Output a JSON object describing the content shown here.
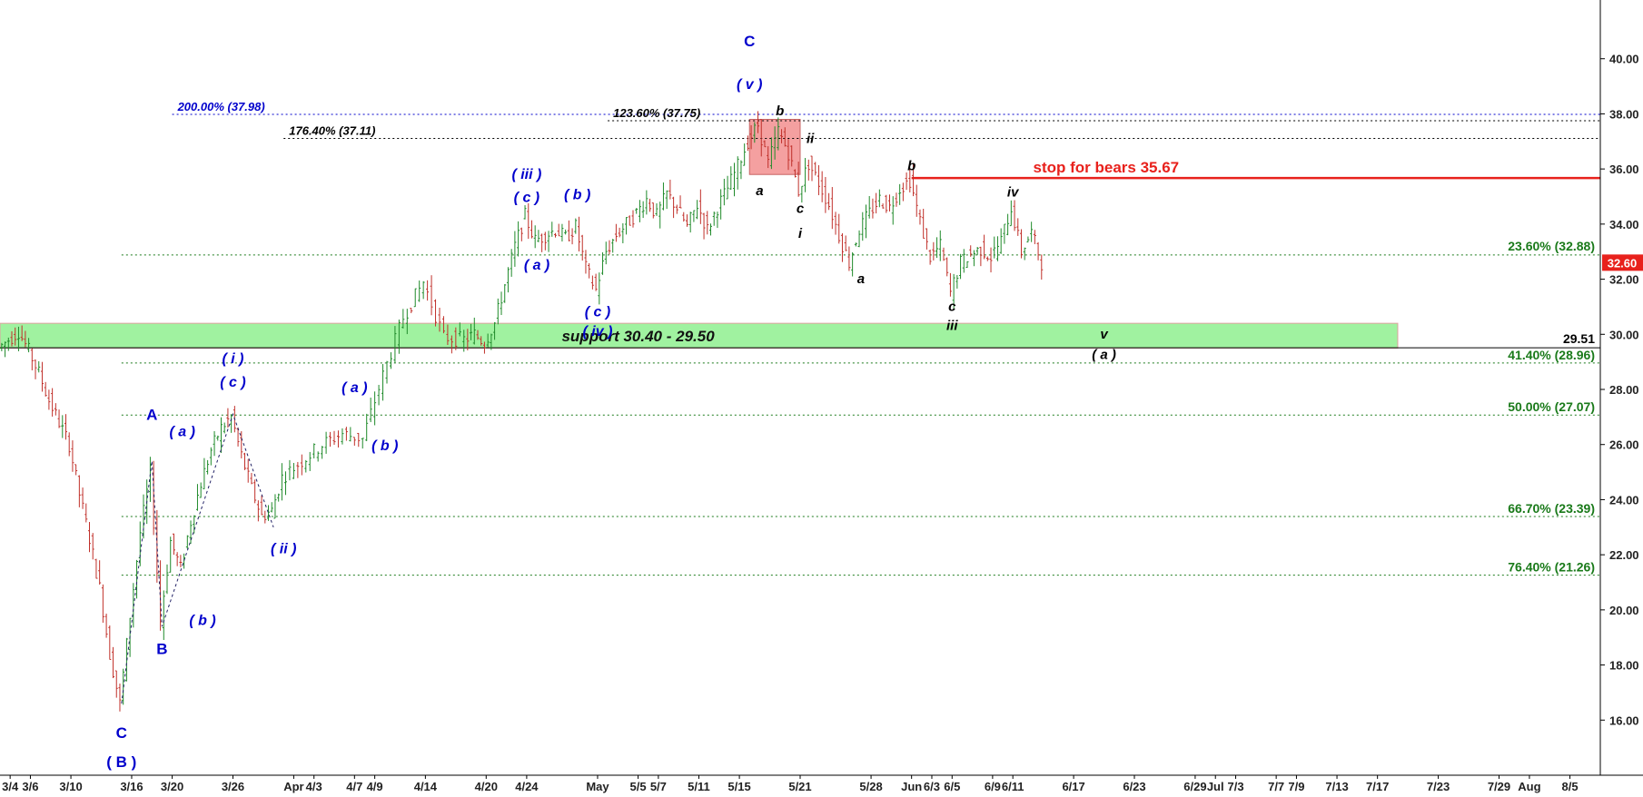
{
  "chart_data": {
    "type": "candlestick",
    "y_axis": {
      "ylim": [
        14.0,
        42.0
      ],
      "ticks": [
        16.0,
        18.0,
        20.0,
        22.0,
        24.0,
        26.0,
        28.0,
        30.0,
        32.0,
        34.0,
        36.0,
        38.0,
        40.0
      ],
      "tick_labels": [
        "16.00",
        "18.00",
        "20.00",
        "22.00",
        "24.00",
        "26.00",
        "28.00",
        "30.00",
        "32.00",
        "34.00",
        "36.00",
        "38.00",
        "40.00"
      ],
      "position": "right"
    },
    "x_axis": {
      "date_range": [
        "2020-03-03",
        "2020-08-08"
      ],
      "ticks": [
        {
          "date": "2020-03-04",
          "label": "3/4"
        },
        {
          "date": "2020-03-06",
          "label": "3/6"
        },
        {
          "date": "2020-03-10",
          "label": "3/10"
        },
        {
          "date": "2020-03-16",
          "label": "3/16"
        },
        {
          "date": "2020-03-20",
          "label": "3/20"
        },
        {
          "date": "2020-03-26",
          "label": "3/26"
        },
        {
          "date": "2020-04-01",
          "label": "Apr"
        },
        {
          "date": "2020-04-03",
          "label": "4/3"
        },
        {
          "date": "2020-04-07",
          "label": "4/7"
        },
        {
          "date": "2020-04-09",
          "label": "4/9"
        },
        {
          "date": "2020-04-14",
          "label": "4/14"
        },
        {
          "date": "2020-04-20",
          "label": "4/20"
        },
        {
          "date": "2020-04-24",
          "label": "4/24"
        },
        {
          "date": "2020-05-01",
          "label": "May"
        },
        {
          "date": "2020-05-05",
          "label": "5/5"
        },
        {
          "date": "2020-05-07",
          "label": "5/7"
        },
        {
          "date": "2020-05-11",
          "label": "5/11"
        },
        {
          "date": "2020-05-15",
          "label": "5/15"
        },
        {
          "date": "2020-05-21",
          "label": "5/21"
        },
        {
          "date": "2020-05-28",
          "label": "5/28"
        },
        {
          "date": "2020-06-01",
          "label": "Jun"
        },
        {
          "date": "2020-06-03",
          "label": "6/3"
        },
        {
          "date": "2020-06-05",
          "label": "6/5"
        },
        {
          "date": "2020-06-09",
          "label": "6/9"
        },
        {
          "date": "2020-06-11",
          "label": "6/11"
        },
        {
          "date": "2020-06-17",
          "label": "6/17"
        },
        {
          "date": "2020-06-23",
          "label": "6/23"
        },
        {
          "date": "2020-06-29",
          "label": "6/29"
        },
        {
          "date": "2020-07-01",
          "label": "Jul"
        },
        {
          "date": "2020-07-03",
          "label": "7/3"
        },
        {
          "date": "2020-07-07",
          "label": "7/7"
        },
        {
          "date": "2020-07-09",
          "label": "7/9"
        },
        {
          "date": "2020-07-13",
          "label": "7/13"
        },
        {
          "date": "2020-07-17",
          "label": "7/17"
        },
        {
          "date": "2020-07-23",
          "label": "7/23"
        },
        {
          "date": "2020-07-29",
          "label": "7/29"
        },
        {
          "date": "2020-08-01",
          "label": "Aug"
        },
        {
          "date": "2020-08-05",
          "label": "8/5"
        }
      ]
    },
    "price_path": [
      [
        "2020-03-03",
        29.5
      ],
      [
        "2020-03-04",
        29.8
      ],
      [
        "2020-03-05",
        30.1
      ],
      [
        "2020-03-06",
        29.4
      ],
      [
        "2020-03-07",
        28.6
      ],
      [
        "2020-03-08",
        27.6
      ],
      [
        "2020-03-09",
        26.8
      ],
      [
        "2020-03-10",
        26.0
      ],
      [
        "2020-03-11",
        24.2
      ],
      [
        "2020-03-12",
        22.6
      ],
      [
        "2020-03-13",
        20.8
      ],
      [
        "2020-03-14",
        18.4
      ],
      [
        "2020-03-15",
        16.6
      ],
      [
        "2020-03-16",
        19.8
      ],
      [
        "2020-03-17",
        22.8
      ],
      [
        "2020-03-18",
        25.0
      ],
      [
        "2020-03-19",
        19.6
      ],
      [
        "2020-03-20",
        22.5
      ],
      [
        "2020-03-21",
        21.5
      ],
      [
        "2020-03-22",
        23.2
      ],
      [
        "2020-03-23",
        24.6
      ],
      [
        "2020-03-24",
        25.8
      ],
      [
        "2020-03-25",
        26.6
      ],
      [
        "2020-03-26",
        27.0
      ],
      [
        "2020-03-27",
        25.6
      ],
      [
        "2020-03-28",
        24.4
      ],
      [
        "2020-03-29",
        23.4
      ],
      [
        "2020-03-30",
        23.6
      ],
      [
        "2020-03-31",
        24.8
      ],
      [
        "2020-04-02",
        25.4
      ],
      [
        "2020-04-04",
        26.0
      ],
      [
        "2020-04-06",
        26.4
      ],
      [
        "2020-04-08",
        26.2
      ],
      [
        "2020-04-10",
        28.5
      ],
      [
        "2020-04-12",
        30.6
      ],
      [
        "2020-04-14",
        31.9
      ],
      [
        "2020-04-16",
        29.9
      ],
      [
        "2020-04-18",
        29.8
      ],
      [
        "2020-04-19",
        30.0
      ],
      [
        "2020-04-20",
        29.7
      ],
      [
        "2020-04-21",
        30.4
      ],
      [
        "2020-04-22",
        31.8
      ],
      [
        "2020-04-23",
        33.2
      ],
      [
        "2020-04-24",
        34.3
      ],
      [
        "2020-04-25",
        33.4
      ],
      [
        "2020-04-26",
        33.6
      ],
      [
        "2020-04-27",
        33.8
      ],
      [
        "2020-04-28",
        33.5
      ],
      [
        "2020-04-29",
        33.9
      ],
      [
        "2020-04-30",
        32.4
      ],
      [
        "2020-05-01",
        31.6
      ],
      [
        "2020-05-02",
        33.0
      ],
      [
        "2020-05-03",
        33.6
      ],
      [
        "2020-05-04",
        34.0
      ],
      [
        "2020-05-05",
        34.4
      ],
      [
        "2020-05-06",
        34.9
      ],
      [
        "2020-05-07",
        34.3
      ],
      [
        "2020-05-08",
        35.1
      ],
      [
        "2020-05-09",
        34.6
      ],
      [
        "2020-05-10",
        33.9
      ],
      [
        "2020-05-11",
        34.7
      ],
      [
        "2020-05-12",
        33.8
      ],
      [
        "2020-05-13",
        34.6
      ],
      [
        "2020-05-14",
        35.3
      ],
      [
        "2020-05-15",
        36.1
      ],
      [
        "2020-05-16",
        37.0
      ],
      [
        "2020-05-17",
        37.6
      ],
      [
        "2020-05-18",
        36.2
      ],
      [
        "2020-05-19",
        37.4
      ],
      [
        "2020-05-20",
        36.6
      ],
      [
        "2020-05-21",
        35.2
      ],
      [
        "2020-05-22",
        36.2
      ],
      [
        "2020-05-23",
        35.5
      ],
      [
        "2020-05-24",
        34.7
      ],
      [
        "2020-05-25",
        33.6
      ],
      [
        "2020-05-26",
        32.6
      ],
      [
        "2020-05-27",
        33.8
      ],
      [
        "2020-05-28",
        34.4
      ],
      [
        "2020-05-29",
        34.9
      ],
      [
        "2020-05-30",
        34.6
      ],
      [
        "2020-05-31",
        35.3
      ],
      [
        "2020-06-01",
        35.6
      ],
      [
        "2020-06-02",
        34.1
      ],
      [
        "2020-06-03",
        32.8
      ],
      [
        "2020-06-04",
        33.2
      ],
      [
        "2020-06-05",
        31.5
      ],
      [
        "2020-06-06",
        32.6
      ],
      [
        "2020-06-07",
        32.9
      ],
      [
        "2020-06-08",
        33.1
      ],
      [
        "2020-06-09",
        32.8
      ],
      [
        "2020-06-10",
        33.4
      ],
      [
        "2020-06-11",
        34.6
      ],
      [
        "2020-06-12",
        33.0
      ],
      [
        "2020-06-13",
        33.7
      ],
      [
        "2020-06-14",
        32.6
      ]
    ],
    "last_price": {
      "value": 32.6,
      "label": "32.60",
      "color": "#e8211c"
    },
    "zones": [
      {
        "label": "support 30.40 - 29.50",
        "y_low": 29.5,
        "y_high": 30.4,
        "x_start": "2020-03-03",
        "x_end": "2020-07-19",
        "color": "#8ff08f"
      },
      {
        "label": "",
        "y_low": 35.8,
        "y_high": 37.8,
        "x_start": "2020-05-16",
        "x_end": "2020-05-21",
        "color": "#f08080"
      }
    ],
    "levels": [
      {
        "label": "200.00% (37.98)",
        "value": 37.98,
        "x_start": "2020-03-20",
        "color": "#0000cc",
        "style": "dotted"
      },
      {
        "label": "123.60% (37.75)",
        "value": 37.75,
        "x_start": "2020-05-02",
        "color": "#000000",
        "style": "dotted"
      },
      {
        "label": "176.40% (37.11)",
        "value": 37.11,
        "x_start": "2020-03-31",
        "color": "#000000",
        "style": "dotted"
      },
      {
        "label": "23.60% (32.88)",
        "value": 32.88,
        "x_start": "2020-03-15",
        "color": "#1a7a1a",
        "style": "dotted"
      },
      {
        "label": "41.40% (28.96)",
        "value": 28.96,
        "x_start": "2020-03-15",
        "color": "#1a7a1a",
        "style": "dotted"
      },
      {
        "label": "50.00% (27.07)",
        "value": 27.07,
        "x_start": "2020-03-15",
        "color": "#1a7a1a",
        "style": "dotted"
      },
      {
        "label": "66.70% (23.39)",
        "value": 23.39,
        "x_start": "2020-03-15",
        "color": "#1a7a1a",
        "style": "dotted"
      },
      {
        "label": "76.40% (21.26)",
        "value": 21.26,
        "x_start": "2020-03-15",
        "color": "#1a7a1a",
        "style": "dotted"
      },
      {
        "label": "29.51",
        "value": 29.51,
        "x_start": "2020-03-03",
        "color": "#000000",
        "style": "solid"
      },
      {
        "label": "stop for bears 35.67",
        "value": 35.67,
        "x_start": "2020-06-01",
        "color": "#e8211c",
        "style": "solid"
      }
    ],
    "wave_lines": [
      [
        [
          "2020-03-15",
          16.6
        ],
        [
          "2020-03-18",
          25.4
        ],
        [
          "2020-03-19",
          19.4
        ],
        [
          "2020-03-26",
          27.1
        ],
        [
          "2020-03-30",
          23.0
        ]
      ]
    ],
    "annotations": [
      {
        "text": "C",
        "date": "2020-05-16",
        "value": 40.45,
        "color": "#0000cc",
        "bold": true,
        "italic": false,
        "size": 17
      },
      {
        "text": "( v )",
        "date": "2020-05-16",
        "value": 38.9,
        "color": "#0000cc",
        "bold": true,
        "italic": true,
        "size": 16
      },
      {
        "text": "b",
        "date": "2020-05-19",
        "value": 37.95,
        "color": "#000000",
        "bold": true,
        "italic": true,
        "size": 15
      },
      {
        "text": "ii",
        "date": "2020-05-22",
        "value": 36.95,
        "color": "#000000",
        "bold": true,
        "italic": true,
        "size": 15
      },
      {
        "text": "a",
        "date": "2020-05-17",
        "value": 35.05,
        "color": "#000000",
        "bold": true,
        "italic": true,
        "size": 15
      },
      {
        "text": "c",
        "date": "2020-05-21",
        "value": 34.4,
        "color": "#000000",
        "bold": true,
        "italic": true,
        "size": 15
      },
      {
        "text": "i",
        "date": "2020-05-21",
        "value": 33.5,
        "color": "#000000",
        "bold": true,
        "italic": true,
        "size": 15
      },
      {
        "text": "b",
        "date": "2020-06-01",
        "value": 35.95,
        "color": "#000000",
        "bold": true,
        "italic": true,
        "size": 15
      },
      {
        "text": "a",
        "date": "2020-05-27",
        "value": 31.85,
        "color": "#000000",
        "bold": true,
        "italic": true,
        "size": 15
      },
      {
        "text": "iv",
        "date": "2020-06-11",
        "value": 35.0,
        "color": "#000000",
        "bold": true,
        "italic": true,
        "size": 15
      },
      {
        "text": "c",
        "date": "2020-06-05",
        "value": 30.85,
        "color": "#000000",
        "bold": true,
        "italic": true,
        "size": 15
      },
      {
        "text": "iii",
        "date": "2020-06-05",
        "value": 30.15,
        "color": "#000000",
        "bold": true,
        "italic": true,
        "size": 15
      },
      {
        "text": "v",
        "date": "2020-06-20",
        "value": 29.85,
        "color": "#000000",
        "bold": true,
        "italic": true,
        "size": 15
      },
      {
        "text": "( a )",
        "date": "2020-06-20",
        "value": 29.1,
        "color": "#000000",
        "bold": true,
        "italic": true,
        "size": 15
      },
      {
        "text": "( iii )",
        "date": "2020-04-24",
        "value": 35.65,
        "color": "#0000cc",
        "bold": true,
        "italic": true,
        "size": 16
      },
      {
        "text": "( c )",
        "date": "2020-04-24",
        "value": 34.8,
        "color": "#0000cc",
        "bold": true,
        "italic": true,
        "size": 16
      },
      {
        "text": "( b )",
        "date": "2020-04-29",
        "value": 34.9,
        "color": "#0000cc",
        "bold": true,
        "italic": true,
        "size": 16
      },
      {
        "text": "( a )",
        "date": "2020-04-25",
        "value": 32.35,
        "color": "#0000cc",
        "bold": true,
        "italic": true,
        "size": 16
      },
      {
        "text": "( c )",
        "date": "2020-05-01",
        "value": 30.65,
        "color": "#0000cc",
        "bold": true,
        "italic": true,
        "size": 16
      },
      {
        "text": "( iv )",
        "date": "2020-05-01",
        "value": 29.95,
        "color": "#0000cc",
        "bold": true,
        "italic": true,
        "size": 16
      },
      {
        "text": "( i )",
        "date": "2020-03-26",
        "value": 28.95,
        "color": "#0000cc",
        "bold": true,
        "italic": true,
        "size": 16
      },
      {
        "text": "( c )",
        "date": "2020-03-26",
        "value": 28.1,
        "color": "#0000cc",
        "bold": true,
        "italic": true,
        "size": 16
      },
      {
        "text": "( a )",
        "date": "2020-04-07",
        "value": 27.9,
        "color": "#0000cc",
        "bold": true,
        "italic": true,
        "size": 16
      },
      {
        "text": "( b )",
        "date": "2020-04-10",
        "value": 25.8,
        "color": "#0000cc",
        "bold": true,
        "italic": true,
        "size": 16
      },
      {
        "text": "( ii )",
        "date": "2020-03-31",
        "value": 22.05,
        "color": "#0000cc",
        "bold": true,
        "italic": true,
        "size": 16
      },
      {
        "text": "A",
        "date": "2020-03-18",
        "value": 26.9,
        "color": "#0000cc",
        "bold": true,
        "italic": false,
        "size": 17
      },
      {
        "text": "( a )",
        "date": "2020-03-21",
        "value": 26.3,
        "color": "#0000cc",
        "bold": true,
        "italic": true,
        "size": 16
      },
      {
        "text": "B",
        "date": "2020-03-19",
        "value": 18.4,
        "color": "#0000cc",
        "bold": true,
        "italic": false,
        "size": 17
      },
      {
        "text": "( b )",
        "date": "2020-03-23",
        "value": 19.45,
        "color": "#0000cc",
        "bold": true,
        "italic": true,
        "size": 16
      },
      {
        "text": "C",
        "date": "2020-03-15",
        "value": 15.35,
        "color": "#0000cc",
        "bold": true,
        "italic": false,
        "size": 17
      },
      {
        "text": "( B )",
        "date": "2020-03-15",
        "value": 14.3,
        "color": "#0000cc",
        "bold": true,
        "italic": false,
        "size": 17
      }
    ]
  }
}
